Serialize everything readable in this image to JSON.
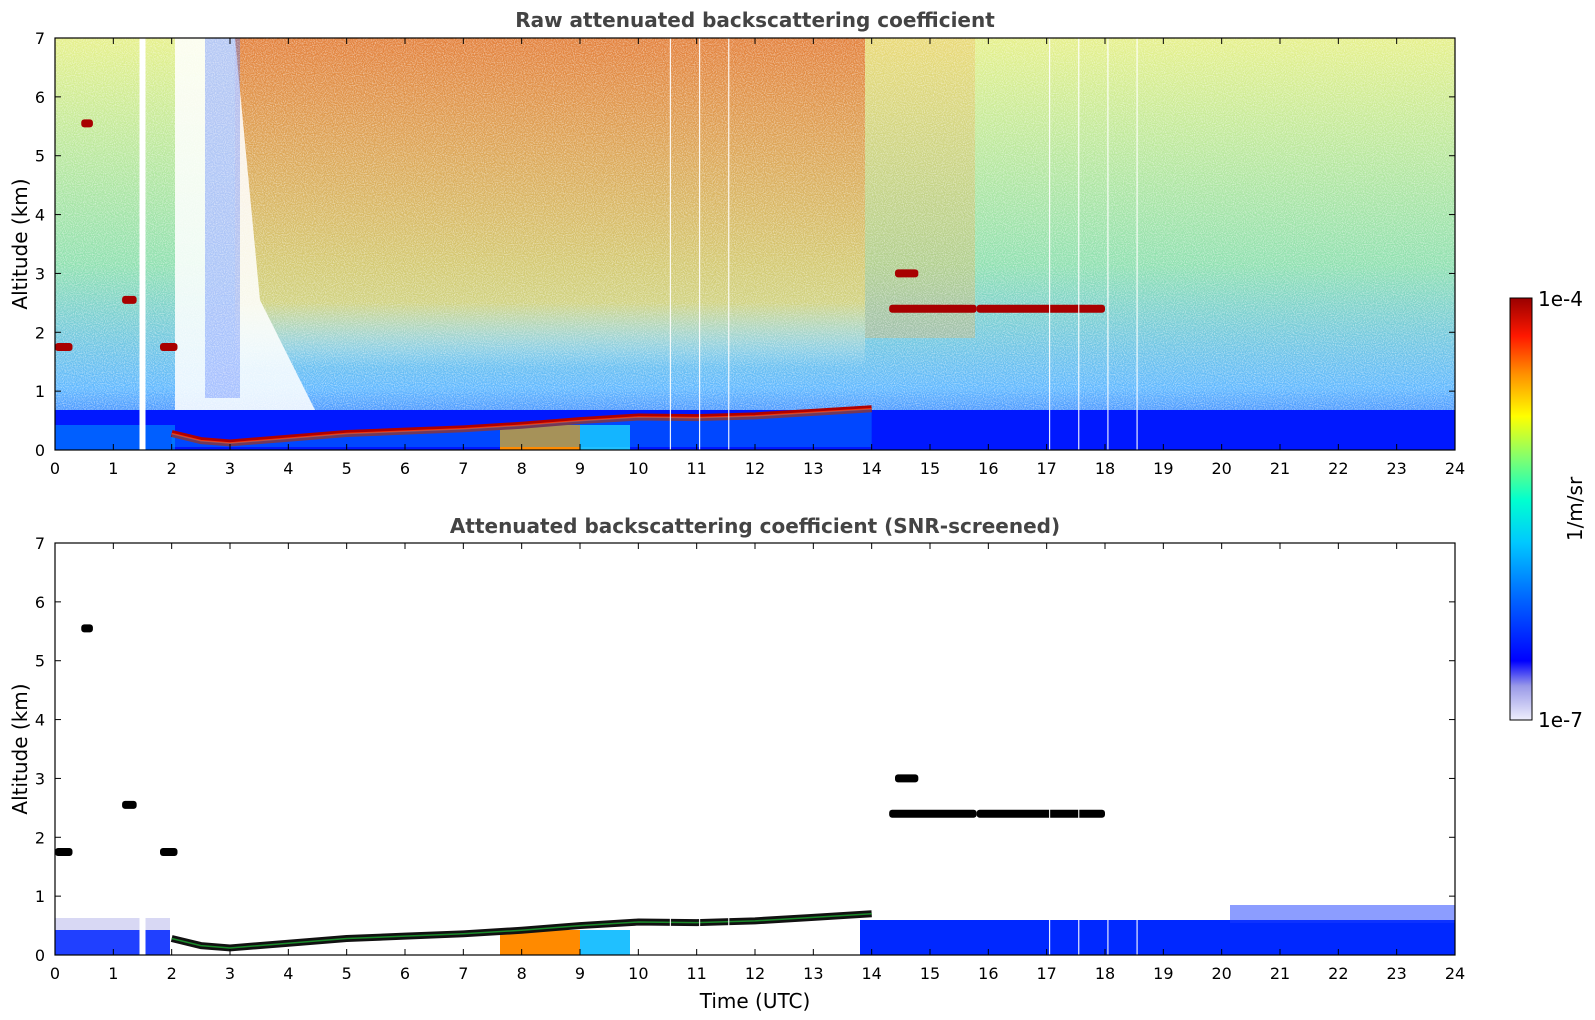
{
  "chart_data": [
    {
      "type": "heatmap",
      "title": "Raw attenuated backscattering coefficient",
      "xlabel": "",
      "ylabel": "Altitude (km)",
      "xlim": [
        0,
        24
      ],
      "ylim": [
        0,
        7
      ],
      "xticks": [
        "0",
        "1",
        "2",
        "3",
        "4",
        "5",
        "6",
        "7",
        "8",
        "9",
        "10",
        "11",
        "12",
        "13",
        "14",
        "15",
        "16",
        "17",
        "18",
        "19",
        "20",
        "21",
        "22",
        "23",
        "24"
      ],
      "yticks": [
        "0",
        "1",
        "2",
        "3",
        "4",
        "5",
        "6",
        "7"
      ],
      "missing_profiles_utc": [
        1.5,
        10.55,
        11.05,
        11.55,
        17.05,
        17.55,
        18.05,
        18.55
      ],
      "boundary_layer_top_km": [
        [
          2.0,
          0.28
        ],
        [
          2.5,
          0.16
        ],
        [
          3.0,
          0.12
        ],
        [
          4.0,
          0.2
        ],
        [
          5.0,
          0.28
        ],
        [
          6.0,
          0.32
        ],
        [
          7.0,
          0.36
        ],
        [
          8.0,
          0.42
        ],
        [
          9.0,
          0.5
        ],
        [
          10.0,
          0.56
        ],
        [
          11.0,
          0.55
        ],
        [
          12.0,
          0.58
        ],
        [
          13.0,
          0.64
        ],
        [
          14.0,
          0.7
        ]
      ],
      "cloud_layers": [
        {
          "start": 0.0,
          "end": 0.3,
          "alt": 1.75
        },
        {
          "start": 1.15,
          "end": 1.4,
          "alt": 2.55
        },
        {
          "start": 1.8,
          "end": 2.1,
          "alt": 1.75
        },
        {
          "start": 0.45,
          "end": 0.65,
          "alt": 5.55
        },
        {
          "start": 14.4,
          "end": 14.8,
          "alt": 3.0
        },
        {
          "start": 14.3,
          "end": 15.8,
          "alt": 2.4
        },
        {
          "start": 15.8,
          "end": 18.0,
          "alt": 2.4
        }
      ]
    },
    {
      "type": "heatmap",
      "title": "Attenuated backscattering coefficient (SNR-screened)",
      "xlabel": "Time (UTC)",
      "ylabel": "Altitude (km)",
      "xlim": [
        0,
        24
      ],
      "ylim": [
        0,
        7
      ],
      "xticks": [
        "0",
        "1",
        "2",
        "3",
        "4",
        "5",
        "6",
        "7",
        "8",
        "9",
        "10",
        "11",
        "12",
        "13",
        "14",
        "15",
        "16",
        "17",
        "18",
        "19",
        "20",
        "21",
        "22",
        "23",
        "24"
      ],
      "yticks": [
        "0",
        "1",
        "2",
        "3",
        "4",
        "5",
        "6",
        "7"
      ]
    }
  ],
  "colorbar": {
    "label": "1/m/sr",
    "top_label": "1e-4",
    "bottom_label": "1e-7",
    "scale": "log",
    "range": [
      1e-07,
      0.0001
    ],
    "colors": [
      "#e8e8f8",
      "#c8c8f0",
      "#9090e8",
      "#0000ff",
      "#0060ff",
      "#00b4ff",
      "#00ffe0",
      "#80ff80",
      "#ffff00",
      "#ff9000",
      "#ff2000",
      "#a00000"
    ]
  }
}
